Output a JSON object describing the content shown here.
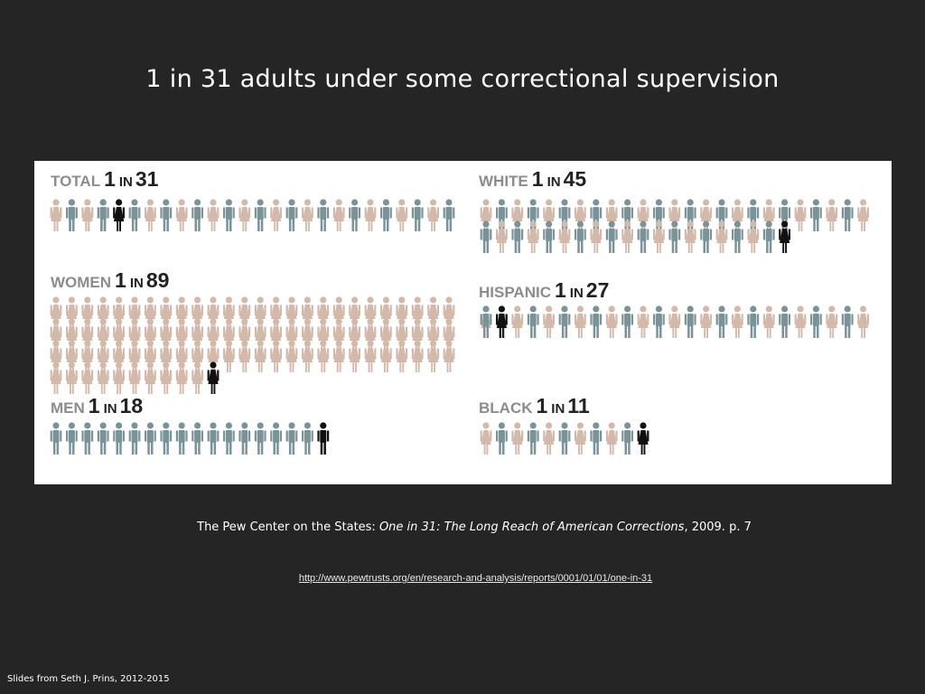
{
  "slide": {
    "title": "1 in 31 adults under some correctional supervision",
    "citation_prefix": "The Pew Center on the States: ",
    "citation_title": "One in 31: The Long Reach of American Corrections",
    "citation_suffix": ", 2009. p. 7",
    "url": "http://www.pewtrusts.org/en/research-and-analysis/reports/0001/01/01/one-in-31",
    "footer": "Slides from Seth J. Prins, 2012-2015"
  },
  "colors": {
    "background": "#252525",
    "panel": "#ffffff",
    "gray_blue": "#7a9399",
    "tan": "#d3b9aa",
    "highlight": "#111111",
    "label_gray": "#8c8c8c",
    "label_dark": "#222222"
  },
  "chart_data": {
    "type": "pictogram",
    "unit": "adults",
    "groups": [
      {
        "key": "total",
        "name": "TOTAL",
        "label_one": "1",
        "label_in": "IN",
        "label_n": "31",
        "highlighted": 1,
        "of": 31
      },
      {
        "key": "women",
        "name": "WOMEN",
        "label_one": "1",
        "label_in": "IN",
        "label_n": "89",
        "highlighted": 1,
        "of": 89
      },
      {
        "key": "men",
        "name": "MEN",
        "label_one": "1",
        "label_in": "IN",
        "label_n": "18",
        "highlighted": 1,
        "of": 18
      },
      {
        "key": "white",
        "name": "WHITE",
        "label_one": "1",
        "label_in": "IN",
        "label_n": "45",
        "highlighted": 1,
        "of": 45
      },
      {
        "key": "hispanic",
        "name": "HISPANIC",
        "label_one": "1",
        "label_in": "IN",
        "label_n": "27",
        "highlighted": 1,
        "of": 27
      },
      {
        "key": "black",
        "name": "BLACK",
        "label_one": "1",
        "label_in": "IN",
        "label_n": "11",
        "highlighted": 1,
        "of": 11
      }
    ]
  }
}
